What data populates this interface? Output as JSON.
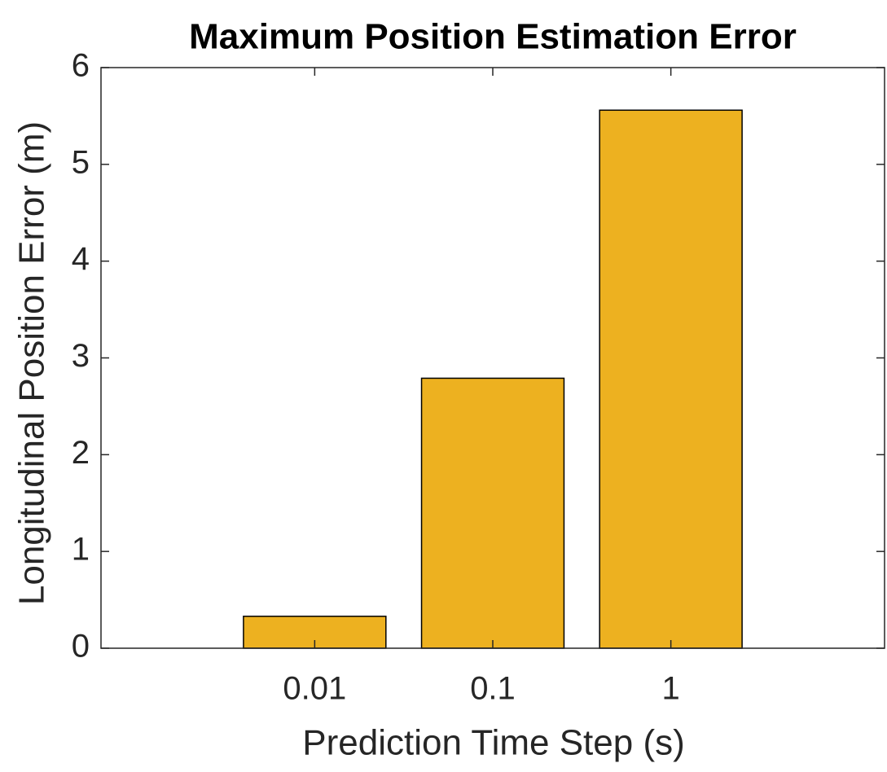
{
  "chart_data": {
    "type": "bar",
    "title": "Maximum Position Estimation Error",
    "xlabel": "Prediction Time Step (s)",
    "ylabel": "Longitudinal Position Error (m)",
    "categories": [
      "0.01",
      "0.1",
      "1"
    ],
    "values": [
      0.33,
      2.79,
      5.56
    ],
    "color": "#EDB120",
    "ylim": [
      0,
      6
    ],
    "yticks": [
      0,
      1,
      2,
      3,
      4,
      5,
      6
    ],
    "grid": false
  }
}
